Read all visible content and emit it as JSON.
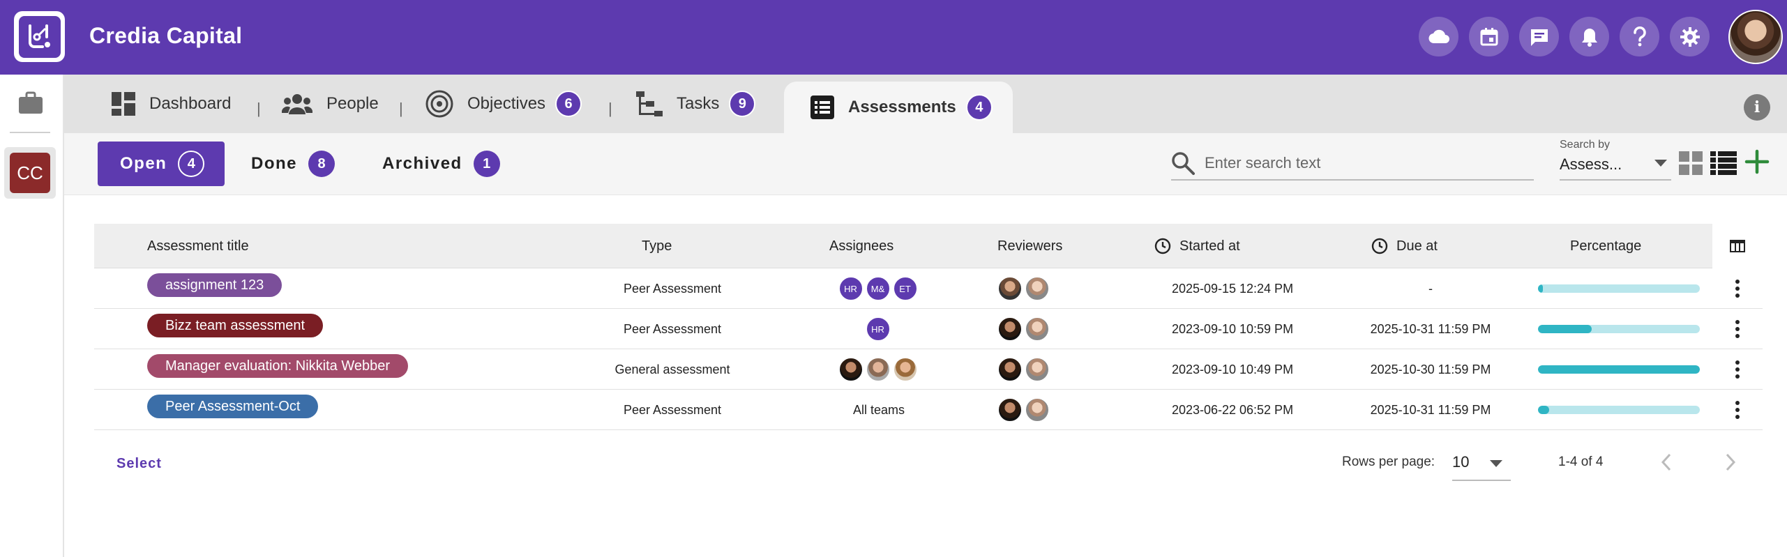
{
  "header": {
    "app_title": "Credia Capital",
    "actions": [
      {
        "name": "cloud-icon"
      },
      {
        "name": "calendar-icon"
      },
      {
        "name": "chat-icon"
      },
      {
        "name": "bell-icon"
      },
      {
        "name": "help-icon"
      },
      {
        "name": "gear-icon"
      }
    ]
  },
  "sidebar": {
    "workspace_initials": "CC",
    "workspace_color": "#8b2a2a"
  },
  "tabs": [
    {
      "label": "Dashboard",
      "icon": "dashboard-icon",
      "badge": null
    },
    {
      "label": "People",
      "icon": "people-icon",
      "badge": null
    },
    {
      "label": "Objectives",
      "icon": "target-icon",
      "badge": "6"
    },
    {
      "label": "Tasks",
      "icon": "tasks-icon",
      "badge": "9"
    },
    {
      "label": "Assessments",
      "icon": "list-icon",
      "badge": "4",
      "active": true
    }
  ],
  "tab_separator": "|",
  "filters": [
    {
      "label": "Open",
      "count": "4",
      "active": true
    },
    {
      "label": "Done",
      "count": "8"
    },
    {
      "label": "Archived",
      "count": "1"
    }
  ],
  "search": {
    "placeholder": "Enter search text",
    "search_by_label": "Search by",
    "search_by_value": "Assess..."
  },
  "table": {
    "columns": {
      "title": "Assessment title",
      "type": "Type",
      "assignees": "Assignees",
      "reviewers": "Reviewers",
      "started": "Started at",
      "due": "Due at",
      "percentage": "Percentage"
    },
    "rows": [
      {
        "title": "assignment 123",
        "chip_color": "#7b4f9a",
        "type": "Peer Assessment",
        "assignees": [
          {
            "initials": "HR"
          },
          {
            "initials": "M&"
          },
          {
            "initials": "ET"
          }
        ],
        "assignees_text": "",
        "reviewers": [
          "face1",
          "face2"
        ],
        "started": "2025-09-15 12:24 PM",
        "due": "-",
        "percentage": 0.03
      },
      {
        "title": "Bizz team assessment",
        "chip_color": "#7a1e24",
        "type": "Peer Assessment",
        "assignees": [
          {
            "initials": "HR"
          }
        ],
        "assignees_text": "",
        "reviewers": [
          "face3",
          "face2"
        ],
        "started": "2023-09-10 10:59 PM",
        "due": "2025-10-31 11:59 PM",
        "percentage": 0.33
      },
      {
        "title": "Manager evaluation: Nikkita Webber",
        "chip_color": "#a24a6a",
        "type": "General assessment",
        "assignees": [
          {
            "face": "face3"
          },
          {
            "face": "face4"
          },
          {
            "face": "face5"
          }
        ],
        "assignees_text": "",
        "reviewers": [
          "face3",
          "face2"
        ],
        "started": "2023-09-10 10:49 PM",
        "due": "2025-10-30 11:59 PM",
        "percentage": 1.0
      },
      {
        "title": "Peer Assessment-Oct",
        "chip_color": "#3b6ea8",
        "type": "Peer Assessment",
        "assignees": [],
        "assignees_text": "All teams",
        "reviewers": [
          "face3",
          "face2"
        ],
        "started": "2023-06-22 06:52 PM",
        "due": "2025-10-31 11:59 PM",
        "percentage": 0.07
      }
    ]
  },
  "footer": {
    "select_label": "Select",
    "rows_per_page_label": "Rows per page:",
    "rows_per_page_value": "10",
    "range_text": "1-4 of 4"
  },
  "colors": {
    "brand": "#5d3aaf",
    "progress_fill": "#2fb5c4",
    "progress_track": "#b9e6ec",
    "add_green": "#2e8b3a"
  }
}
